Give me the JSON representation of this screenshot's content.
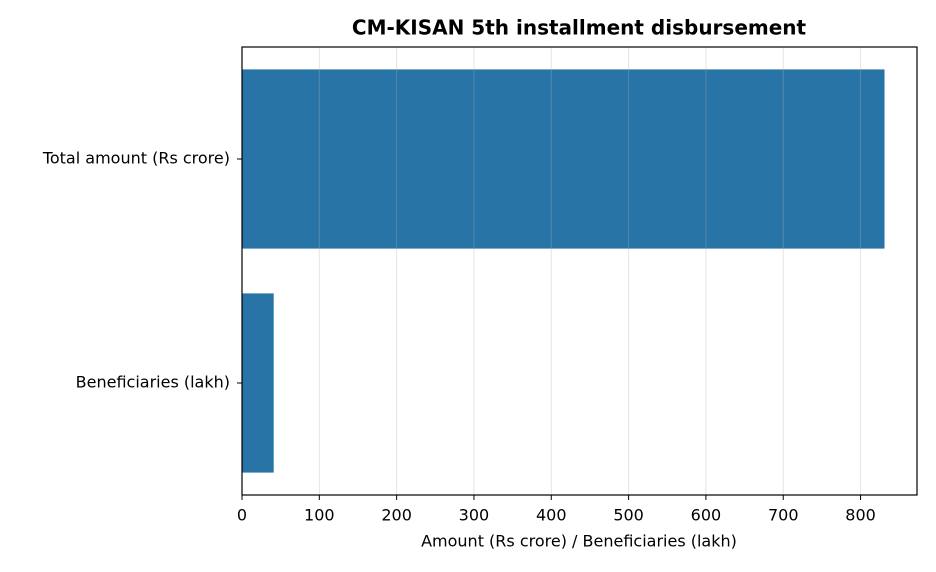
{
  "chart_data": {
    "type": "bar",
    "orientation": "horizontal",
    "title": "CM-KISAN 5th installment disbursement",
    "x_label": "Amount (Rs crore) / Beneficiaries (lakh)",
    "categories": [
      "Total amount (Rs crore)",
      "Beneficiaries (lakh)"
    ],
    "values": [
      831,
      41
    ],
    "color": "#2874a6",
    "xlim": [
      0,
      873
    ],
    "xticks": [
      0,
      100,
      200,
      300,
      400,
      500,
      600,
      700,
      800
    ],
    "grid": true
  }
}
